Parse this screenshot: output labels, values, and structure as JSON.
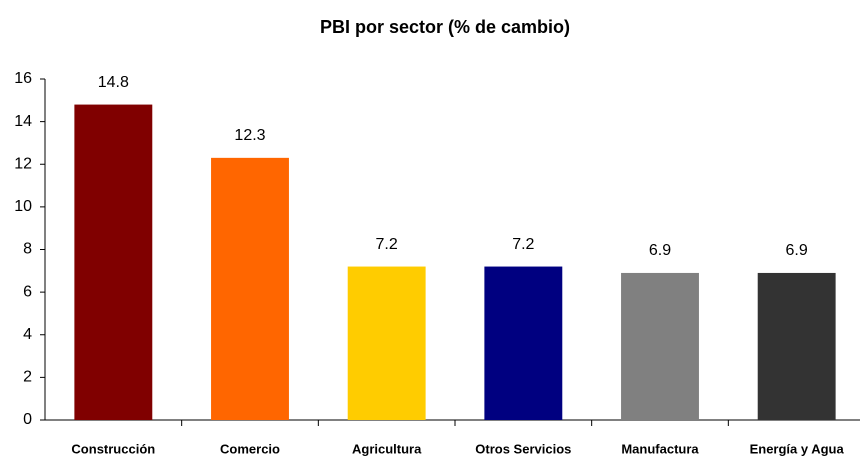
{
  "chart_data": {
    "type": "bar",
    "title": "PBI por sector (% de cambio)",
    "categories": [
      "Construcción",
      "Comercio",
      "Agricultura",
      "Otros Servicios",
      "Manufactura",
      "Energía y Agua"
    ],
    "values": [
      14.8,
      12.3,
      7.2,
      7.2,
      6.9,
      6.9
    ],
    "colors": [
      "#800000",
      "#ff6600",
      "#ffcc00",
      "#000080",
      "#808080",
      "#333333"
    ],
    "ylim": [
      0,
      16
    ],
    "yticks": [
      0,
      2,
      4,
      6,
      8,
      10,
      12,
      14,
      16
    ],
    "grid": false
  }
}
